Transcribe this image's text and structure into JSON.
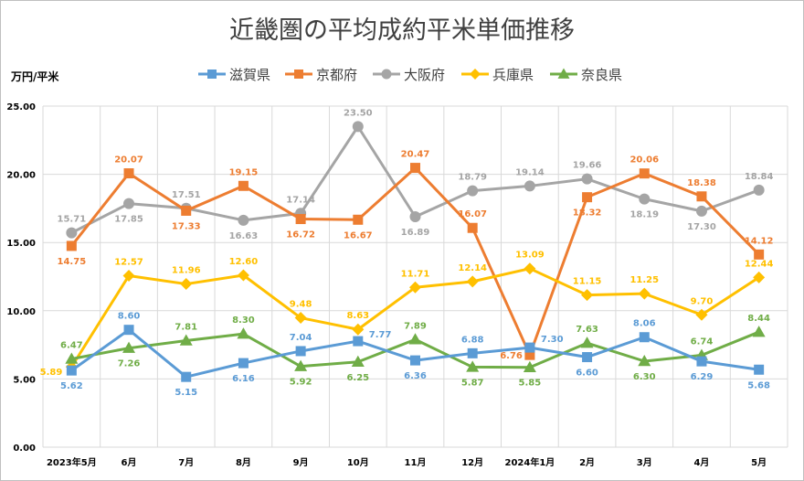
{
  "chart_data": {
    "type": "line",
    "title": "近畿圏の平均成約平米単価推移",
    "ylabel": "万円/平米",
    "ylim": [
      0,
      25
    ],
    "yticks": [
      "0.00",
      "5.00",
      "10.00",
      "15.00",
      "20.00",
      "25.00"
    ],
    "grid": true,
    "legend_position": "top",
    "categories": [
      "2023年5月",
      "6月",
      "7月",
      "8月",
      "9月",
      "10月",
      "11月",
      "12月",
      "2024年1月",
      "2月",
      "3月",
      "4月",
      "5月"
    ],
    "series": [
      {
        "name": "滋賀県",
        "color": "#5b9bd5",
        "marker": "square",
        "values": [
          5.62,
          8.6,
          5.15,
          6.16,
          7.04,
          7.77,
          6.36,
          6.88,
          7.3,
          6.6,
          8.06,
          6.29,
          5.68
        ],
        "labels": [
          "5.62",
          "8.60",
          "5.15",
          "6.16",
          "7.04",
          "7.77",
          "6.36",
          "6.88",
          "7.30",
          "6.60",
          "8.06",
          "6.29",
          "5.68"
        ]
      },
      {
        "name": "京都府",
        "color": "#ed7d31",
        "marker": "square",
        "values": [
          14.75,
          20.07,
          17.33,
          19.15,
          16.72,
          16.67,
          20.47,
          16.07,
          6.76,
          18.32,
          20.06,
          18.38,
          14.12
        ],
        "labels": [
          "14.75",
          "20.07",
          "17.33",
          "19.15",
          "16.72",
          "16.67",
          "20.47",
          "16.07",
          "6.76",
          "18.32",
          "20.06",
          "18.38",
          "14.12"
        ]
      },
      {
        "name": "大阪府",
        "color": "#a5a5a5",
        "marker": "circle",
        "values": [
          15.71,
          17.85,
          17.51,
          16.63,
          17.14,
          23.5,
          16.89,
          18.79,
          19.14,
          19.66,
          18.19,
          17.3,
          18.84
        ],
        "labels": [
          "15.71",
          "17.85",
          "17.51",
          "16.63",
          "17.14",
          "23.50",
          "16.89",
          "18.79",
          "19.14",
          "19.66",
          "18.19",
          "17.30",
          "18.84"
        ]
      },
      {
        "name": "兵庫県",
        "color": "#ffc000",
        "marker": "diamond",
        "values": [
          5.89,
          12.57,
          11.96,
          12.6,
          9.48,
          8.63,
          11.71,
          12.14,
          13.09,
          11.15,
          11.25,
          9.7,
          12.44
        ],
        "labels": [
          "5.89",
          "12.57",
          "11.96",
          "12.60",
          "9.48",
          "8.63",
          "11.71",
          "12.14",
          "13.09",
          "11.15",
          "11.25",
          "9.70",
          "12.44"
        ]
      },
      {
        "name": "奈良県",
        "color": "#70ad47",
        "marker": "triangle",
        "values": [
          6.47,
          7.26,
          7.81,
          8.3,
          5.92,
          6.25,
          7.89,
          5.87,
          5.85,
          7.63,
          6.3,
          6.74,
          8.44
        ],
        "labels": [
          "6.47",
          "7.26",
          "7.81",
          "8.30",
          "5.92",
          "6.25",
          "7.89",
          "5.87",
          "5.85",
          "7.63",
          "6.30",
          "6.74",
          "8.44"
        ]
      }
    ]
  }
}
